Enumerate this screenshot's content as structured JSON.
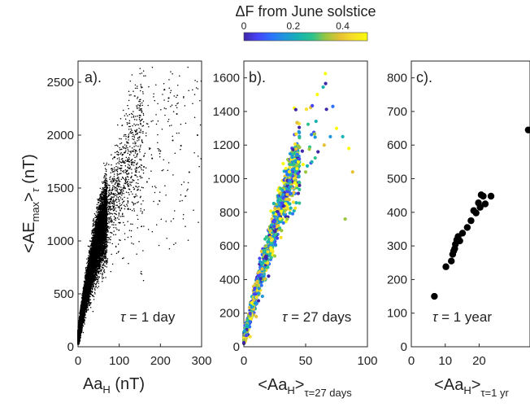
{
  "colorbar": {
    "label_prefix": "ΔF",
    "label_rest": " from June solstice",
    "ticks": [
      "0",
      "0.2",
      "0.4"
    ],
    "tick_values": [
      0,
      0.2,
      0.4
    ],
    "range": [
      0,
      0.5
    ],
    "colormap": [
      "#3e26a8",
      "#4743f8",
      "#2c72fc",
      "#1e97da",
      "#18b2b2",
      "#2ec28b",
      "#9bc73f",
      "#e6c134",
      "#f9e028",
      "#f9fb0e"
    ]
  },
  "chart_data": [
    {
      "type": "scatter",
      "panel_label": "a).",
      "annotation_symbol": "τ",
      "annotation_text": " = 1 day",
      "xlabel_main": "Aa",
      "xlabel_sub": "H",
      "xlabel_unit": " (nT)",
      "ylabel_main": "<AE",
      "ylabel_sub1": "max",
      "ylabel_mid": ">",
      "ylabel_sub2": "τ",
      "ylabel_unit": "  (nT)",
      "xlim": [
        0,
        300
      ],
      "ylim": [
        0,
        2700
      ],
      "xticks": [
        0,
        100,
        200,
        300
      ],
      "yticks": [
        0,
        500,
        1000,
        1500,
        2000,
        2500
      ],
      "marker_color": "#000000",
      "n_points": 15000,
      "points": [
        [
          5,
          90
        ],
        [
          10,
          200
        ],
        [
          15,
          300
        ],
        [
          20,
          420
        ],
        [
          25,
          520
        ],
        [
          30,
          630
        ],
        [
          35,
          700
        ],
        [
          40,
          820
        ],
        [
          45,
          900
        ],
        [
          50,
          980
        ],
        [
          60,
          1100
        ],
        [
          70,
          1200
        ],
        [
          80,
          1300
        ],
        [
          90,
          1380
        ],
        [
          100,
          1450
        ],
        [
          110,
          1500
        ],
        [
          120,
          1560
        ],
        [
          140,
          1620
        ],
        [
          160,
          1700
        ],
        [
          180,
          1780
        ],
        [
          200,
          1850
        ],
        [
          210,
          2430
        ],
        [
          220,
          2350
        ],
        [
          230,
          1950
        ],
        [
          240,
          2200
        ],
        [
          250,
          1900
        ],
        [
          270,
          1650
        ],
        [
          290,
          2000
        ]
      ]
    },
    {
      "type": "scatter",
      "panel_label": "b).",
      "annotation_symbol": "τ",
      "annotation_text": " = 27 days",
      "xlabel_main": "<Aa",
      "xlabel_sub": "H",
      "xlabel_mid": ">",
      "xlabel_sub2": "τ=27 days",
      "xlim": [
        0,
        100
      ],
      "ylim": [
        0,
        1700
      ],
      "xticks": [
        0,
        50,
        100
      ],
      "yticks": [
        0,
        200,
        400,
        600,
        800,
        1000,
        1200,
        1400,
        1600
      ],
      "color_encoding": "ΔF from June solstice",
      "n_points": 1300,
      "points": [
        [
          5,
          60
        ],
        [
          10,
          180
        ],
        [
          15,
          300
        ],
        [
          20,
          420
        ],
        [
          25,
          540
        ],
        [
          30,
          650
        ],
        [
          35,
          760
        ],
        [
          40,
          860
        ],
        [
          45,
          960
        ],
        [
          50,
          1040
        ],
        [
          55,
          1100
        ],
        [
          60,
          1160
        ],
        [
          65,
          1200
        ],
        [
          70,
          1250
        ],
        [
          75,
          1300
        ],
        [
          72,
          1430
        ],
        [
          80,
          1250
        ],
        [
          85,
          1180
        ],
        [
          88,
          1040
        ],
        [
          82,
          760
        ]
      ]
    },
    {
      "type": "scatter",
      "panel_label": "c).",
      "annotation_symbol": "τ",
      "annotation_text": " = 1 year",
      "xlabel_main": "<Aa",
      "xlabel_sub": "H",
      "xlabel_mid": ">",
      "xlabel_sub2": "τ=1 yr",
      "xlim": [
        0,
        35
      ],
      "ylim": [
        0,
        850
      ],
      "xticks": [
        0,
        10,
        20
      ],
      "yticks": [
        0,
        100,
        200,
        300,
        400,
        500,
        600,
        700,
        800
      ],
      "marker_color": "#000000",
      "x": [
        6.8,
        10.2,
        11.8,
        12.2,
        12.5,
        12.8,
        13.0,
        13.4,
        13.8,
        14.3,
        15.1,
        16.5,
        17.6,
        18.4,
        19.1,
        19.8,
        20.3,
        20.6,
        21.2,
        21.8,
        23.5,
        34.5
      ],
      "y": [
        150,
        238,
        255,
        275,
        285,
        292,
        305,
        318,
        328,
        315,
        338,
        355,
        375,
        405,
        398,
        428,
        415,
        452,
        448,
        425,
        448,
        645
      ]
    }
  ]
}
